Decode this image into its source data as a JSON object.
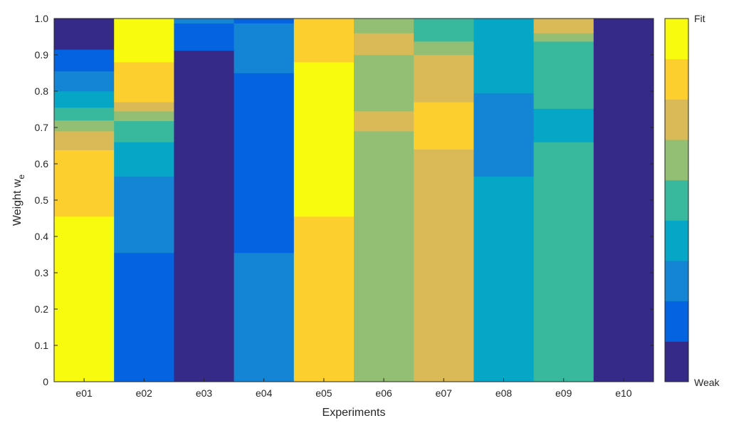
{
  "chart_data": {
    "type": "bar",
    "stacked": true,
    "normalized": true,
    "xlabel": "Experiments",
    "ylabel": "Weight w",
    "ylabel_subscript": "e",
    "ylim": [
      0,
      1
    ],
    "yticks": [
      "0",
      "0.1",
      "0.2",
      "0.3",
      "0.4",
      "0.5",
      "0.6",
      "0.7",
      "0.8",
      "0.9",
      "1.0"
    ],
    "grid": false,
    "colormap": [
      "#352a87",
      "#0363e1",
      "#1485d4",
      "#06a7c6",
      "#38b99e",
      "#92bf73",
      "#d9ba56",
      "#fcce2e",
      "#f9fb0e"
    ],
    "colorbar": {
      "top_label": "Fit",
      "bottom_label": "Weak",
      "position": "right"
    },
    "categories": [
      "e01",
      "e02",
      "e03",
      "e04",
      "e05",
      "e06",
      "e07",
      "e08",
      "e09",
      "e10"
    ],
    "stacks": [
      {
        "category": "e01",
        "segments": [
          {
            "color_index": 8,
            "value": 0.455
          },
          {
            "color_index": 7,
            "value": 0.183
          },
          {
            "color_index": 6,
            "value": 0.052
          },
          {
            "color_index": 5,
            "value": 0.03
          },
          {
            "color_index": 4,
            "value": 0.035
          },
          {
            "color_index": 3,
            "value": 0.045
          },
          {
            "color_index": 2,
            "value": 0.055
          },
          {
            "color_index": 1,
            "value": 0.06
          },
          {
            "color_index": 0,
            "value": 0.085
          }
        ]
      },
      {
        "category": "e02",
        "segments": [
          {
            "color_index": 1,
            "value": 0.355
          },
          {
            "color_index": 2,
            "value": 0.21
          },
          {
            "color_index": 3,
            "value": 0.095
          },
          {
            "color_index": 4,
            "value": 0.058
          },
          {
            "color_index": 5,
            "value": 0.027
          },
          {
            "color_index": 6,
            "value": 0.025
          },
          {
            "color_index": 7,
            "value": 0.11
          },
          {
            "color_index": 8,
            "value": 0.12
          }
        ]
      },
      {
        "category": "e03",
        "segments": [
          {
            "color_index": 0,
            "value": 0.912
          },
          {
            "color_index": 1,
            "value": 0.075
          },
          {
            "color_index": 2,
            "value": 0.013
          }
        ]
      },
      {
        "category": "e04",
        "segments": [
          {
            "color_index": 2,
            "value": 0.355
          },
          {
            "color_index": 1,
            "value": 0.495
          },
          {
            "color_index": 2,
            "value": 0.137
          },
          {
            "color_index": 1,
            "value": 0.013
          }
        ]
      },
      {
        "category": "e05",
        "segments": [
          {
            "color_index": 7,
            "value": 0.455
          },
          {
            "color_index": 8,
            "value": 0.425
          },
          {
            "color_index": 7,
            "value": 0.12
          }
        ]
      },
      {
        "category": "e06",
        "segments": [
          {
            "color_index": 5,
            "value": 0.69
          },
          {
            "color_index": 6,
            "value": 0.055
          },
          {
            "color_index": 5,
            "value": 0.155
          },
          {
            "color_index": 6,
            "value": 0.06
          },
          {
            "color_index": 5,
            "value": 0.04
          }
        ]
      },
      {
        "category": "e07",
        "segments": [
          {
            "color_index": 6,
            "value": 0.64
          },
          {
            "color_index": 7,
            "value": 0.13
          },
          {
            "color_index": 6,
            "value": 0.13
          },
          {
            "color_index": 5,
            "value": 0.037
          },
          {
            "color_index": 4,
            "value": 0.063
          }
        ]
      },
      {
        "category": "e08",
        "segments": [
          {
            "color_index": 3,
            "value": 0.565
          },
          {
            "color_index": 2,
            "value": 0.23
          },
          {
            "color_index": 3,
            "value": 0.205
          }
        ]
      },
      {
        "category": "e09",
        "segments": [
          {
            "color_index": 4,
            "value": 0.66
          },
          {
            "color_index": 3,
            "value": 0.092
          },
          {
            "color_index": 4,
            "value": 0.185
          },
          {
            "color_index": 5,
            "value": 0.023
          },
          {
            "color_index": 6,
            "value": 0.04
          }
        ]
      },
      {
        "category": "e10",
        "segments": [
          {
            "color_index": 0,
            "value": 1.0
          }
        ]
      }
    ]
  }
}
